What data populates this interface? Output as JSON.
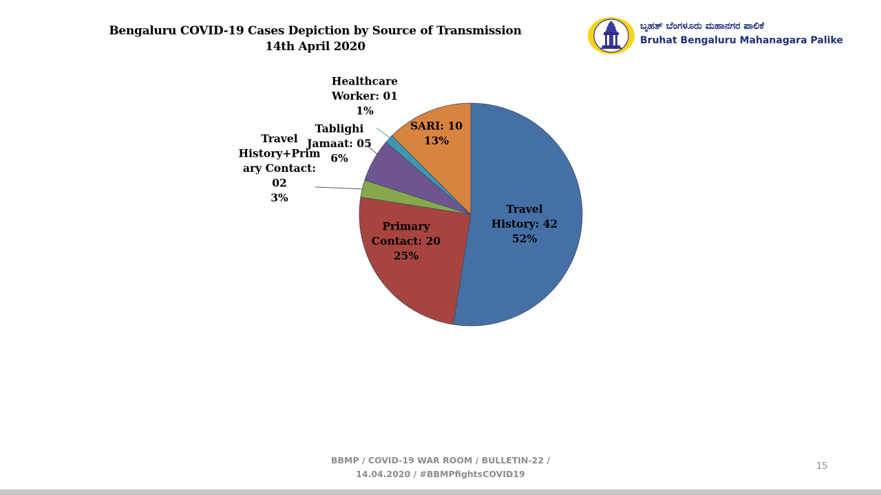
{
  "header": {
    "title_line1": "Bengaluru COVID-19 Cases Depiction by Source of Transmission",
    "title_line2": "14th April 2020"
  },
  "logo": {
    "kannada": "ಬೃಹತ್ ಬೆಂಗಳೂರು ಮಹಾನಗರ ಪಾಲಿಕೆ",
    "english": "Bruhat Bengaluru Mahanagara Palike",
    "emblem_icon": "temple-emblem-icon"
  },
  "footer": {
    "line1": "BBMP / COVID-19 WAR ROOM / BULLETIN-22 /",
    "line2": "14.04.2020 / #BBMPfightsCOVID19",
    "page_number": "15"
  },
  "chart_data": {
    "type": "pie",
    "title": "Bengaluru COVID-19 Cases Depiction by Source of Transmission",
    "subtitle": "14th April 2020",
    "legend": "none (data labels)",
    "slices": [
      {
        "label_lines": [
          "Travel",
          "History: 42"
        ],
        "value": 42,
        "percent": "52%",
        "color": "#4470a6",
        "label_placement": "inside"
      },
      {
        "label_lines": [
          "Primary",
          "Contact: 20"
        ],
        "value": 20,
        "percent": "25%",
        "color": "#a84440",
        "label_placement": "inside"
      },
      {
        "label_lines": [
          "Travel",
          "History+Prim",
          "ary Contact:",
          "02"
        ],
        "value": 2,
        "percent": "3%",
        "color": "#87a84b",
        "label_placement": "outside"
      },
      {
        "label_lines": [
          "Tablighi",
          "Jamaat: 05"
        ],
        "value": 5,
        "percent": "6%",
        "color": "#6e5590",
        "label_placement": "outside"
      },
      {
        "label_lines": [
          "Healthcare",
          "Worker: 01"
        ],
        "value": 1,
        "percent": "1%",
        "color": "#3d98b0",
        "label_placement": "outside"
      },
      {
        "label_lines": [
          "SARI: 10"
        ],
        "value": 10,
        "percent": "13%",
        "color": "#d9843e",
        "label_placement": "inside"
      }
    ]
  }
}
